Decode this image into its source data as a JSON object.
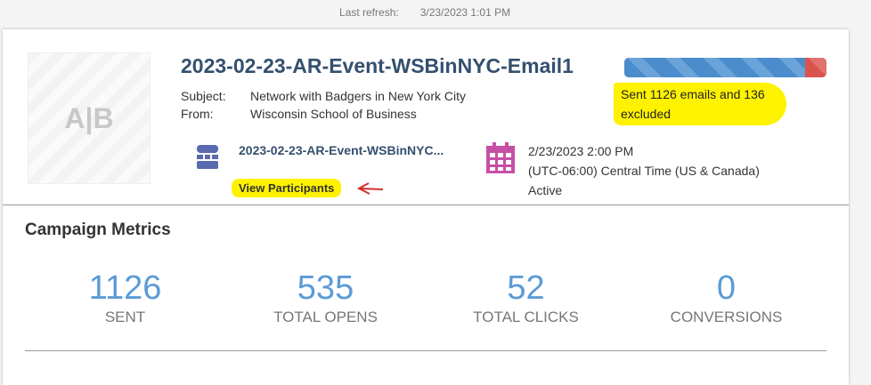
{
  "header": {
    "last_refresh_label": "Last refresh:",
    "last_refresh_value": "3/23/2023 1:01 PM"
  },
  "campaign": {
    "thumbnail_text": "A|B",
    "title": "2023-02-23-AR-Event-WSBinNYC-Email1",
    "subject_label": "Subject:",
    "subject": "Network with Badgers in New York City",
    "from_label": "From:",
    "from": "Wisconsin School of Business",
    "list_name": "2023-02-23-AR-Event-WSBinNYC...",
    "view_participants": "View Participants",
    "schedule_date": "2/23/2023 2:00 PM",
    "timezone": "(UTC-06:00) Central Time (US & Canada)",
    "status": "Active",
    "progress": {
      "sent": 1126,
      "excluded": 136,
      "sent_color": "#4a8ccc",
      "excluded_color": "#d9534f"
    },
    "sent_note": "Sent 1126 emails and 136 excluded"
  },
  "metrics": {
    "title": "Campaign Metrics",
    "items": [
      {
        "value": "1126",
        "label": "SENT"
      },
      {
        "value": "535",
        "label": "TOTAL OPENS"
      },
      {
        "value": "52",
        "label": "TOTAL CLICKS"
      },
      {
        "value": "0",
        "label": "CONVERSIONS"
      }
    ]
  }
}
